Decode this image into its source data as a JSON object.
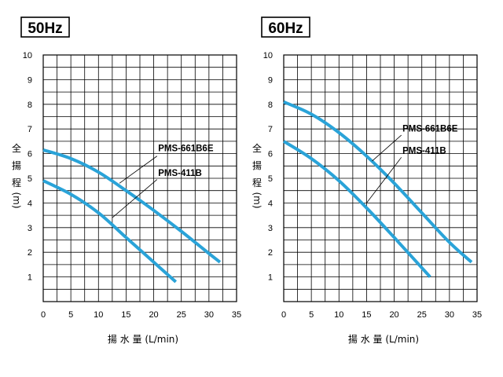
{
  "chart_data": [
    {
      "type": "line",
      "title": "50Hz",
      "xlabel": "揚 水 量 (L/min)",
      "ylabel": [
        "全",
        "揚",
        "程",
        "(m)"
      ],
      "xlim": [
        0,
        35
      ],
      "ylim": [
        0,
        10
      ],
      "x_ticks": [
        0,
        5,
        10,
        15,
        20,
        25,
        30,
        35
      ],
      "y_ticks": [
        1,
        2,
        3,
        4,
        5,
        6,
        7,
        8,
        9,
        10
      ],
      "grid": true,
      "curve_color": "#2aa3d8",
      "series": [
        {
          "name": "PMS-661B6E",
          "x": [
            0,
            5,
            10,
            15,
            20,
            25,
            30,
            32
          ],
          "y": [
            6.15,
            5.8,
            5.25,
            4.5,
            3.7,
            2.85,
            1.95,
            1.6
          ]
        },
        {
          "name": "PMS-411B",
          "x": [
            0,
            5,
            10,
            15,
            20,
            24
          ],
          "y": [
            4.9,
            4.35,
            3.6,
            2.6,
            1.6,
            0.8
          ]
        }
      ],
      "annotations": [
        {
          "series": "PMS-661B6E",
          "label_at": [
            20.8,
            6.1
          ],
          "label_anchor": [
            20.6,
            5.9
          ],
          "point": [
            13.8,
            4.8
          ]
        },
        {
          "series": "PMS-411B",
          "label_at": [
            20.8,
            5.1
          ],
          "label_anchor": [
            20.6,
            4.95
          ],
          "point": [
            12.5,
            3.4
          ]
        }
      ]
    },
    {
      "type": "line",
      "title": "60Hz",
      "xlabel": "揚 水 量 (L/min)",
      "ylabel": [
        "全",
        "揚",
        "程",
        "(m)"
      ],
      "xlim": [
        0,
        35
      ],
      "ylim": [
        0,
        10
      ],
      "x_ticks": [
        0,
        5,
        10,
        15,
        20,
        25,
        30,
        35
      ],
      "y_ticks": [
        1,
        2,
        3,
        4,
        5,
        6,
        7,
        8,
        9,
        10
      ],
      "grid": true,
      "curve_color": "#2aa3d8",
      "series": [
        {
          "name": "PMS-661B6E",
          "x": [
            0,
            5,
            10,
            15,
            20,
            25,
            30,
            34
          ],
          "y": [
            8.1,
            7.6,
            6.85,
            5.9,
            4.8,
            3.6,
            2.4,
            1.6
          ]
        },
        {
          "name": "PMS-411B",
          "x": [
            0,
            5,
            10,
            15,
            20,
            26.5
          ],
          "y": [
            6.5,
            5.8,
            4.9,
            3.8,
            2.6,
            1.0
          ]
        }
      ],
      "annotations": [
        {
          "series": "PMS-661B6E",
          "label_at": [
            21.5,
            6.9
          ],
          "label_anchor": [
            21.3,
            6.75
          ],
          "point": [
            16.0,
            5.7
          ]
        },
        {
          "series": "PMS-411B",
          "label_at": [
            21.5,
            6.0
          ],
          "label_anchor": [
            21.3,
            5.85
          ],
          "point": [
            15.0,
            4.0
          ]
        }
      ]
    }
  ]
}
